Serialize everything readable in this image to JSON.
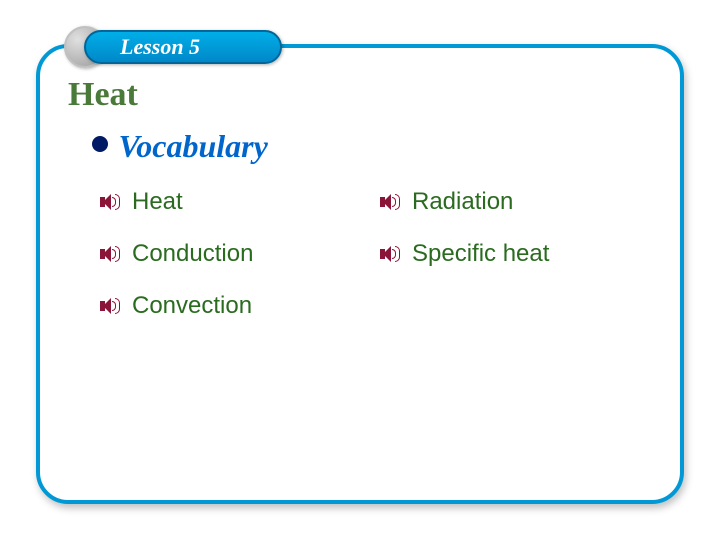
{
  "lesson_badge": "Lesson 5",
  "title": "Heat",
  "section_heading": "Vocabulary",
  "terms_left": [
    "Heat",
    "Conduction",
    "Convection"
  ],
  "terms_right": [
    "Radiation",
    "Specific heat"
  ],
  "colors": {
    "border": "#0099d6",
    "title": "#4a7a3a",
    "vocab": "#0066cc",
    "term": "#2a6b1f",
    "speaker": "#8a1538",
    "badge_bg_top": "#00aee8",
    "badge_bg_bottom": "#0088c8"
  }
}
